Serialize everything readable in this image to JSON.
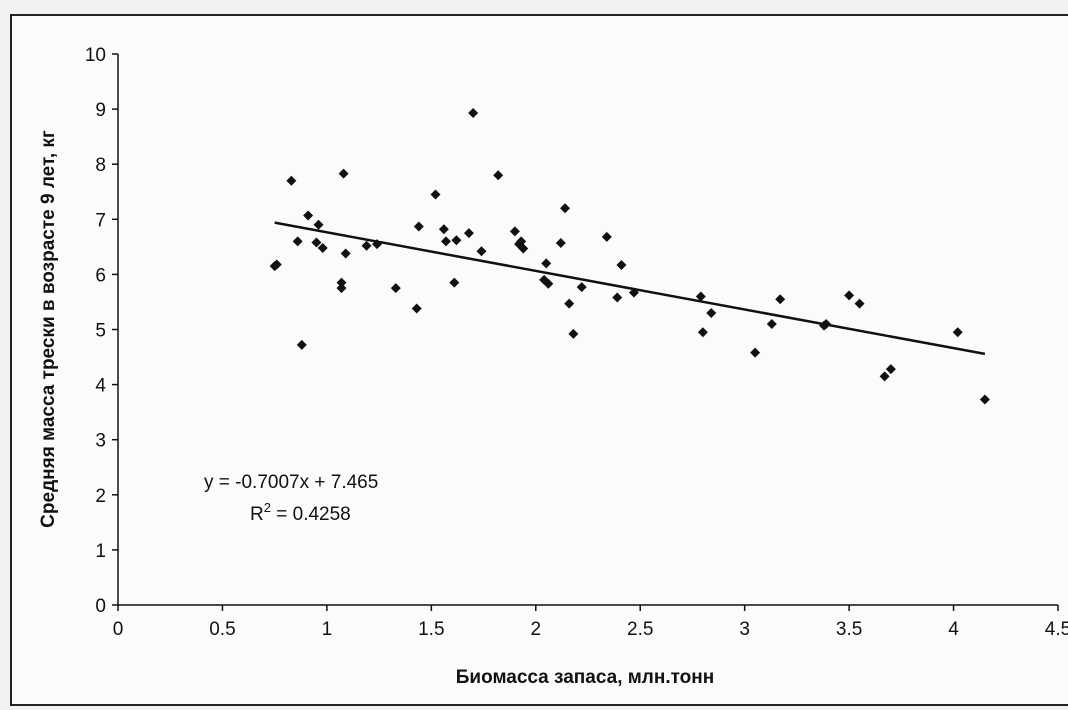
{
  "chart_data": {
    "type": "scatter",
    "title": "",
    "xlabel": "Биомасса запаса, млн.тонн",
    "ylabel": "Средняя масса трески в возрасте 9 лет, кг",
    "xlim": [
      0,
      4.5
    ],
    "ylim": [
      0,
      10
    ],
    "xticks": [
      "0",
      "0.5",
      "1",
      "1.5",
      "2",
      "2.5",
      "3",
      "3.5",
      "4",
      "4.5"
    ],
    "yticks": [
      "0",
      "1",
      "2",
      "3",
      "4",
      "5",
      "6",
      "7",
      "8",
      "9",
      "10"
    ],
    "grid": false,
    "legend": "none",
    "marker_color": "#111111",
    "points": [
      [
        0.75,
        6.15
      ],
      [
        0.76,
        6.18
      ],
      [
        0.83,
        7.7
      ],
      [
        0.86,
        6.6
      ],
      [
        0.88,
        4.72
      ],
      [
        0.91,
        7.07
      ],
      [
        0.95,
        6.58
      ],
      [
        0.96,
        6.9
      ],
      [
        0.98,
        6.48
      ],
      [
        1.07,
        5.85
      ],
      [
        1.07,
        5.75
      ],
      [
        1.08,
        7.83
      ],
      [
        1.09,
        6.38
      ],
      [
        1.19,
        6.52
      ],
      [
        1.24,
        6.55
      ],
      [
        1.33,
        5.75
      ],
      [
        1.43,
        5.38
      ],
      [
        1.44,
        6.87
      ],
      [
        1.52,
        7.45
      ],
      [
        1.56,
        6.82
      ],
      [
        1.57,
        6.6
      ],
      [
        1.61,
        5.85
      ],
      [
        1.62,
        6.62
      ],
      [
        1.68,
        6.75
      ],
      [
        1.7,
        8.93
      ],
      [
        1.74,
        6.42
      ],
      [
        1.82,
        7.8
      ],
      [
        1.9,
        6.78
      ],
      [
        1.92,
        6.55
      ],
      [
        1.93,
        6.6
      ],
      [
        1.94,
        6.47
      ],
      [
        2.04,
        5.9
      ],
      [
        2.05,
        6.2
      ],
      [
        2.06,
        5.83
      ],
      [
        2.12,
        6.57
      ],
      [
        2.14,
        7.2
      ],
      [
        2.16,
        5.47
      ],
      [
        2.18,
        4.92
      ],
      [
        2.22,
        5.77
      ],
      [
        2.34,
        6.68
      ],
      [
        2.39,
        5.58
      ],
      [
        2.41,
        6.17
      ],
      [
        2.47,
        5.67
      ],
      [
        2.79,
        5.6
      ],
      [
        2.8,
        4.95
      ],
      [
        2.84,
        5.3
      ],
      [
        3.05,
        4.58
      ],
      [
        3.13,
        5.1
      ],
      [
        3.17,
        5.55
      ],
      [
        3.38,
        5.07
      ],
      [
        3.39,
        5.1
      ],
      [
        3.5,
        5.62
      ],
      [
        3.55,
        5.47
      ],
      [
        3.67,
        4.15
      ],
      [
        3.7,
        4.28
      ],
      [
        4.02,
        4.95
      ],
      [
        4.15,
        3.73
      ]
    ],
    "trendline": {
      "slope": -0.7007,
      "intercept": 7.465,
      "x_range": [
        0.75,
        4.15
      ]
    },
    "annotations": {
      "equation": "y = -0.7007x + 7.465",
      "r2_label": "R",
      "r2_sup": "2",
      "r2_value": " = 0.4258"
    }
  }
}
